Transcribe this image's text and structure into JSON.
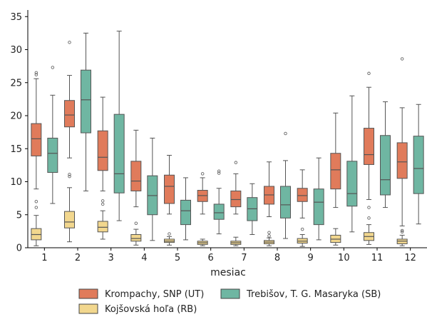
{
  "chart_data": {
    "type": "box",
    "xlabel": "mesiac",
    "ylabel": "",
    "ylim": [
      0,
      36
    ],
    "y_ticks": [
      0,
      5,
      10,
      15,
      20,
      25,
      30,
      35
    ],
    "categories": [
      "1",
      "2",
      "3",
      "4",
      "5",
      "6",
      "7",
      "8",
      "9",
      "10",
      "11",
      "12"
    ],
    "legend_position": "bottom",
    "series": [
      {
        "name": "Krompachy, SNP (UT)",
        "color": "#e07b5b",
        "boxes": [
          {
            "whislo": 8.9,
            "q1": 13.9,
            "med": 16.5,
            "q3": 18.8,
            "whishi": 25.6,
            "fliers": [
              26.2,
              26.5
            ]
          },
          {
            "whislo": 13.6,
            "q1": 18.3,
            "med": 20.1,
            "q3": 22.3,
            "whishi": 26.1,
            "fliers": [
              10.8,
              11.1,
              31.1
            ]
          },
          {
            "whislo": 8.6,
            "q1": 11.7,
            "med": 13.7,
            "q3": 17.7,
            "whishi": 22.8,
            "fliers": []
          },
          {
            "whislo": 6.2,
            "q1": 8.6,
            "med": 10.1,
            "q3": 13.1,
            "whishi": 17.8,
            "fliers": []
          },
          {
            "whislo": 5.1,
            "q1": 6.7,
            "med": 9.3,
            "q3": 11.0,
            "whishi": 14.0,
            "fliers": []
          },
          {
            "whislo": 5.1,
            "q1": 7.0,
            "med": 7.9,
            "q3": 8.7,
            "whishi": 10.6,
            "fliers": [
              11.2
            ]
          },
          {
            "whislo": 5.1,
            "q1": 6.2,
            "med": 7.3,
            "q3": 8.6,
            "whishi": 11.2,
            "fliers": [
              12.9
            ]
          },
          {
            "whislo": 4.7,
            "q1": 6.6,
            "med": 8.0,
            "q3": 9.3,
            "whishi": 13.0,
            "fliers": []
          },
          {
            "whislo": 4.5,
            "q1": 7.0,
            "med": 7.9,
            "q3": 9.0,
            "whishi": 11.8,
            "fliers": []
          },
          {
            "whislo": 6.1,
            "q1": 8.9,
            "med": 11.8,
            "q3": 14.3,
            "whishi": 20.4,
            "fliers": []
          },
          {
            "whislo": 7.3,
            "q1": 12.6,
            "med": 14.1,
            "q3": 18.1,
            "whishi": 24.3,
            "fliers": [
              26.4
            ]
          },
          {
            "whislo": 3.3,
            "q1": 10.5,
            "med": 13.0,
            "q3": 15.9,
            "whishi": 21.2,
            "fliers": [
              28.6
            ]
          }
        ]
      },
      {
        "name": "Kojšovská hoľa (RB)",
        "color": "#f2d78e",
        "boxes": [
          {
            "whislo": 0.3,
            "q1": 1.2,
            "med": 2.0,
            "q3": 2.9,
            "whishi": 4.9,
            "fliers": [
              6.1,
              7.0
            ]
          },
          {
            "whislo": 0.9,
            "q1": 3.0,
            "med": 3.9,
            "q3": 5.5,
            "whishi": 9.1,
            "fliers": []
          },
          {
            "whislo": 1.3,
            "q1": 2.4,
            "med": 3.1,
            "q3": 4.0,
            "whishi": 5.6,
            "fliers": [
              6.6,
              7.1
            ]
          },
          {
            "whislo": 0.4,
            "q1": 1.0,
            "med": 1.4,
            "q3": 2.0,
            "whishi": 2.8,
            "fliers": [
              3.7
            ]
          },
          {
            "whislo": 0.4,
            "q1": 0.8,
            "med": 1.0,
            "q3": 1.3,
            "whishi": 1.7,
            "fliers": [
              2.1
            ]
          },
          {
            "whislo": 0.3,
            "q1": 0.5,
            "med": 0.75,
            "q3": 1.0,
            "whishi": 1.3,
            "fliers": []
          },
          {
            "whislo": 0.3,
            "q1": 0.5,
            "med": 0.75,
            "q3": 1.0,
            "whishi": 1.6,
            "fliers": []
          },
          {
            "whislo": 0.3,
            "q1": 0.6,
            "med": 0.85,
            "q3": 1.1,
            "whishi": 1.5,
            "fliers": [
              1.8,
              2.3
            ]
          },
          {
            "whislo": 0.2,
            "q1": 0.7,
            "med": 1.0,
            "q3": 1.4,
            "whishi": 2.0,
            "fliers": [
              2.8
            ]
          },
          {
            "whislo": 0.4,
            "q1": 0.8,
            "med": 1.3,
            "q3": 1.9,
            "whishi": 2.9,
            "fliers": []
          },
          {
            "whislo": 0.5,
            "q1": 1.1,
            "med": 1.7,
            "q3": 2.3,
            "whishi": 3.5,
            "fliers": [
              4.5,
              6.1
            ]
          },
          {
            "whislo": 0.3,
            "q1": 0.6,
            "med": 1.0,
            "q3": 1.3,
            "whishi": 1.9,
            "fliers": [
              2.4,
              2.6
            ]
          }
        ]
      },
      {
        "name": "Trebišov, T. G. Masaryka (SB)",
        "color": "#6fb6a2",
        "boxes": [
          {
            "whislo": 6.7,
            "q1": 11.4,
            "med": 14.3,
            "q3": 16.6,
            "whishi": 23.1,
            "fliers": [
              27.3
            ]
          },
          {
            "whislo": 8.6,
            "q1": 17.4,
            "med": 22.4,
            "q3": 26.9,
            "whishi": 32.5,
            "fliers": []
          },
          {
            "whislo": 4.1,
            "q1": 8.3,
            "med": 11.2,
            "q3": 20.2,
            "whishi": 32.8,
            "fliers": []
          },
          {
            "whislo": 1.1,
            "q1": 5.0,
            "med": 7.9,
            "q3": 10.9,
            "whishi": 16.6,
            "fliers": []
          },
          {
            "whislo": 1.2,
            "q1": 3.5,
            "med": 5.6,
            "q3": 7.2,
            "whishi": 10.6,
            "fliers": []
          },
          {
            "whislo": 2.1,
            "q1": 4.3,
            "med": 5.3,
            "q3": 6.6,
            "whishi": 9.0,
            "fliers": [
              11.3,
              11.6
            ]
          },
          {
            "whislo": 2.0,
            "q1": 4.1,
            "med": 5.9,
            "q3": 7.6,
            "whishi": 9.7,
            "fliers": []
          },
          {
            "whislo": 1.4,
            "q1": 4.5,
            "med": 6.5,
            "q3": 9.3,
            "whishi": 13.2,
            "fliers": [
              17.3
            ]
          },
          {
            "whislo": 1.2,
            "q1": 3.5,
            "med": 6.9,
            "q3": 8.9,
            "whishi": 13.6,
            "fliers": []
          },
          {
            "whislo": 2.4,
            "q1": 6.3,
            "med": 8.2,
            "q3": 13.1,
            "whishi": 23.0,
            "fliers": []
          },
          {
            "whislo": 6.1,
            "q1": 8.0,
            "med": 10.3,
            "q3": 17.0,
            "whishi": 22.1,
            "fliers": []
          },
          {
            "whislo": 3.6,
            "q1": 8.2,
            "med": 12.0,
            "q3": 16.9,
            "whishi": 21.7,
            "fliers": []
          }
        ]
      }
    ]
  },
  "legend": {
    "items": [
      {
        "label": "Krompachy, SNP (UT)",
        "color": "#e07b5b"
      },
      {
        "label": "Trebišov, T. G. Masaryka (SB)",
        "color": "#6fb6a2"
      },
      {
        "label": "Kojšovská hoľa (RB)",
        "color": "#f2d78e"
      }
    ]
  }
}
